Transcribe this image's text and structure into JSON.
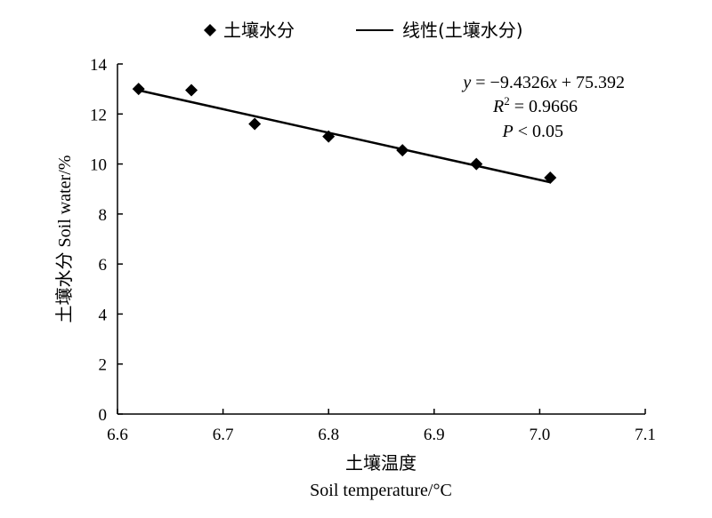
{
  "chart_data": {
    "type": "scatter",
    "series": [
      {
        "name": "土壤水分",
        "x": [
          6.62,
          6.67,
          6.73,
          6.8,
          6.87,
          6.94,
          7.01
        ],
        "y": [
          13.0,
          12.95,
          11.6,
          11.1,
          10.55,
          10.0,
          9.45
        ],
        "color": "#000000",
        "marker": "diamond"
      }
    ],
    "trendline": {
      "name": "线性(土壤水分)",
      "slope": -9.4326,
      "intercept": 75.392,
      "x_range": [
        6.62,
        7.01
      ]
    },
    "annotations": {
      "equation": "y = −9.4326x + 75.392",
      "r2": "R² = 0.9666",
      "p": "P < 0.05"
    },
    "xlabel_cn": "土壤温度",
    "xlabel_en": "Soil temperature/°C",
    "ylabel": "土壤水分 Soil water/%",
    "xlim": [
      6.6,
      7.1
    ],
    "ylim": [
      0,
      14
    ],
    "xticks": [
      "6.6",
      "6.7",
      "6.8",
      "6.9",
      "7.0",
      "7.1"
    ],
    "yticks": [
      "0",
      "2",
      "4",
      "6",
      "8",
      "10",
      "12",
      "14"
    ],
    "legend_position": "top",
    "grid": false
  }
}
